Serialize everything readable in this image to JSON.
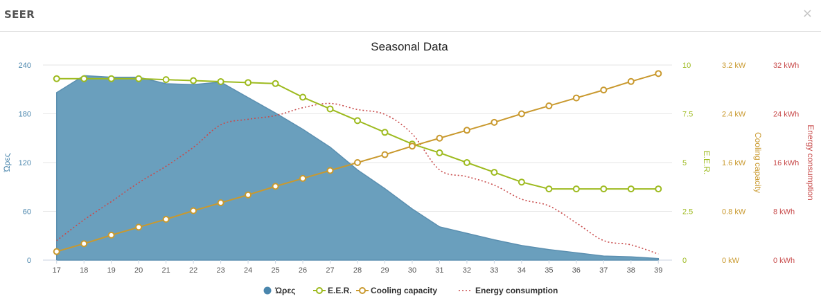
{
  "header": {
    "title": "SEER",
    "close_symbol": "×"
  },
  "colors": {
    "hours": "#6a9fbd",
    "hours_stroke": "#5b8fb0",
    "hours_axis": "#4a86ad",
    "eer": "#9dba1e",
    "cooling": "#c9992e",
    "energy": "#c84b4b"
  },
  "icons": {
    "close": "close-icon"
  },
  "chart_data": {
    "type": "area",
    "title": "Seasonal Data",
    "x": [
      17,
      18,
      19,
      20,
      21,
      22,
      23,
      24,
      25,
      26,
      27,
      28,
      29,
      30,
      31,
      32,
      33,
      34,
      35,
      36,
      37,
      38,
      39
    ],
    "xlim": [
      16.5,
      39.5
    ],
    "axes": [
      {
        "id": "hours",
        "label": "Ώρες",
        "ticks": [
          "0",
          "60",
          "120",
          "180",
          "240"
        ],
        "range": [
          0,
          240
        ],
        "side": "left"
      },
      {
        "id": "eer",
        "label": "E.E.R.",
        "ticks": [
          "0",
          "2.5",
          "5",
          "7.5",
          "10"
        ],
        "range": [
          0,
          10
        ],
        "side": "right"
      },
      {
        "id": "cooling",
        "label": "Cooling capacity",
        "ticks": [
          "0 kW",
          "0.8 kW",
          "1.6 kW",
          "2.4 kW",
          "3.2 kW"
        ],
        "range": [
          0,
          3.2
        ],
        "side": "right"
      },
      {
        "id": "energy",
        "label": "Energy consumption",
        "ticks": [
          "0 kWh",
          "8 kWh",
          "16 kWh",
          "24 kWh",
          "32 kWh"
        ],
        "range": [
          0,
          32
        ],
        "side": "right"
      }
    ],
    "series": [
      {
        "name": "Ώρες",
        "type": "area",
        "axis": "hours",
        "values": [
          206,
          227,
          225,
          225,
          217,
          216,
          219,
          200,
          181,
          161,
          139,
          111,
          88,
          63,
          41,
          33,
          25,
          18,
          13,
          9,
          5,
          4,
          2
        ]
      },
      {
        "name": "E.E.R.",
        "type": "line-marker",
        "axis": "eer",
        "values": [
          9.3,
          9.3,
          9.3,
          9.3,
          9.25,
          9.2,
          9.15,
          9.1,
          9.05,
          8.35,
          7.75,
          7.15,
          6.55,
          5.95,
          5.5,
          5.0,
          4.5,
          4.0,
          3.65,
          3.65,
          3.65,
          3.65,
          3.65
        ]
      },
      {
        "name": "Cooling capacity",
        "type": "line-marker",
        "axis": "cooling",
        "values": [
          0.14,
          0.27,
          0.41,
          0.54,
          0.67,
          0.81,
          0.94,
          1.07,
          1.21,
          1.34,
          1.47,
          1.6,
          1.73,
          1.87,
          2.0,
          2.13,
          2.26,
          2.4,
          2.53,
          2.66,
          2.79,
          2.93,
          3.06
        ]
      },
      {
        "name": "Energy consumption",
        "type": "dotted-line",
        "axis": "energy",
        "values": [
          3.2,
          6.6,
          9.6,
          12.7,
          15.4,
          18.5,
          22.2,
          23.1,
          23.7,
          25.0,
          25.7,
          24.7,
          23.9,
          20.7,
          14.8,
          13.7,
          12.3,
          10.0,
          8.9,
          6.1,
          3.2,
          2.5,
          1.0
        ]
      }
    ],
    "legend": [
      "Ώρες",
      "E.E.R.",
      "Cooling capacity",
      "Energy consumption"
    ],
    "legend_position": "bottom",
    "grid": "horizontal"
  }
}
